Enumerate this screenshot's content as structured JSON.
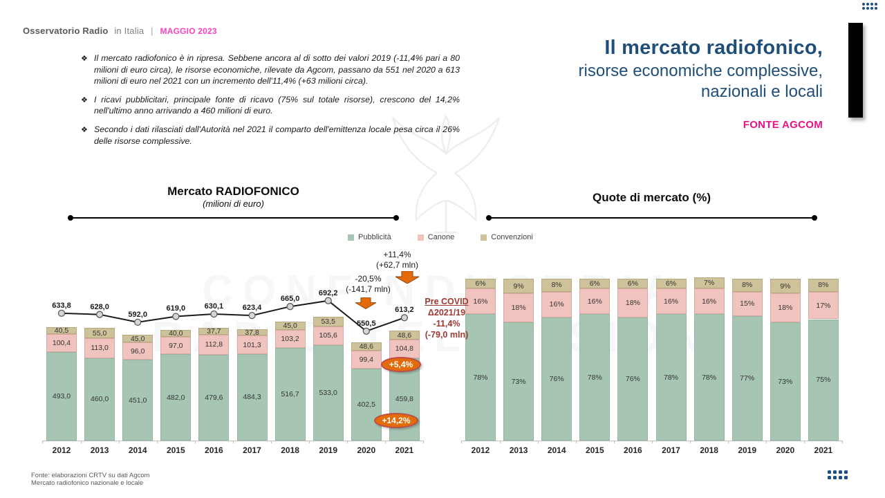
{
  "header": {
    "brand_bold": "Osservatorio Radio",
    "brand_regular": "in Italia",
    "separator": "|",
    "date": "MAGGIO 2023"
  },
  "title": {
    "line1": "Il mercato radiofonico,",
    "line2": "risorse economiche complessive,",
    "line3": "nazionali e locali",
    "source": "FONTE AGCOM"
  },
  "bullets": [
    "Il mercato radiofonico è in ripresa. Sebbene ancora al di sotto dei valori 2019 (-11,4% pari a 80 milioni di euro circa), le risorse economiche, rilevate da Agcom, passano da 551 nel 2020 a 613 milioni di euro nel 2021 con un incremento dell'11,4% (+63 milioni circa).",
    "I ricavi pubblicitari, principale fonte di ricavo (75% sul totale risorse), crescono del 14,2% nell'ultimo anno arrivando a 460 milioni di euro.",
    "Secondo i dati rilasciati dall'Autorità nel 2021 il comparto dell'emittenza locale pesa circa il 26% delle risorse complessive."
  ],
  "colors": {
    "title_blue": "#1F4E79",
    "fonte_pink": "#EE1183",
    "date_magenta": "#FF40C0",
    "dark_red": "#9C3A32",
    "orange": "#E36C0A",
    "orange_border": "#BE4B48"
  },
  "legend": [
    {
      "key": "pubblicita",
      "label": "Pubblicità",
      "color": "#A6C6B3",
      "border": "#93B5A2"
    },
    {
      "key": "canone",
      "label": "Canone",
      "color": "#F0C3BE",
      "border": "#DBA9A4"
    },
    {
      "key": "convenzioni",
      "label": "Convenzioni",
      "color": "#CDC29A",
      "border": "#B5A97F"
    }
  ],
  "chart_data": [
    {
      "type": "bar",
      "stacked": true,
      "title": "Mercato RADIOFONICO",
      "subtitle": "(milioni di euro)",
      "categories": [
        "2012",
        "2013",
        "2014",
        "2015",
        "2016",
        "2017",
        "2018",
        "2019",
        "2020",
        "2021"
      ],
      "series": [
        {
          "name": "Pubblicità",
          "values": [
            493.0,
            460.0,
            451.0,
            482.0,
            479.6,
            484.3,
            516.7,
            533.0,
            402.5,
            459.8
          ]
        },
        {
          "name": "Canone",
          "values": [
            100.4,
            113.0,
            96.0,
            97.0,
            112.8,
            101.3,
            103.2,
            105.6,
            99.4,
            104.8
          ]
        },
        {
          "name": "Convenzioni",
          "values": [
            40.5,
            55.0,
            45.0,
            40.0,
            37.7,
            37.8,
            45.0,
            53.5,
            48.6,
            48.6
          ]
        }
      ],
      "line_overlay": {
        "name": "Totale risorse",
        "values": [
          633.8,
          628.0,
          592.0,
          619.0,
          630.1,
          623.4,
          665.0,
          692.2,
          550.5,
          613.2
        ]
      },
      "ylim": [
        0,
        750
      ],
      "legend_position": "top",
      "grid": false
    },
    {
      "type": "bar",
      "stacked": true,
      "percent": true,
      "title": "Quote di mercato (%)",
      "categories": [
        "2012",
        "2013",
        "2014",
        "2015",
        "2016",
        "2017",
        "2018",
        "2019",
        "2020",
        "2021"
      ],
      "series": [
        {
          "name": "Pubblicità",
          "values": [
            78,
            73,
            76,
            78,
            76,
            78,
            78,
            77,
            73,
            75
          ]
        },
        {
          "name": "Canone",
          "values": [
            16,
            18,
            16,
            16,
            18,
            16,
            16,
            15,
            18,
            17
          ]
        },
        {
          "name": "Convenzioni",
          "values": [
            6,
            9,
            8,
            6,
            6,
            6,
            7,
            8,
            9,
            8
          ]
        }
      ],
      "ylim": [
        0,
        100
      ],
      "grid": false
    }
  ],
  "annotations": {
    "increase": {
      "line1": "+11,4%",
      "line2": "(+62,7 mln)"
    },
    "decrease": {
      "line1": "-20,5%",
      "line2": "(-141,7 mln)"
    },
    "precovid": {
      "line1": "Pre COVID",
      "line2": "Δ2021/19",
      "line3": "-11,4%",
      "line4": "(-79,0 mln)"
    },
    "oval_canone": "+5,4%",
    "oval_pubblicita": "+14,2%"
  },
  "watermark": {
    "line1": "CONFINDUSTRIA",
    "line2": "RADIO TELEVISIONI"
  },
  "footer": {
    "line1": "Fonte: elaborazioni CRTV su dati Agcom",
    "line2": "Mercato radiofonico nazionale e locale"
  }
}
